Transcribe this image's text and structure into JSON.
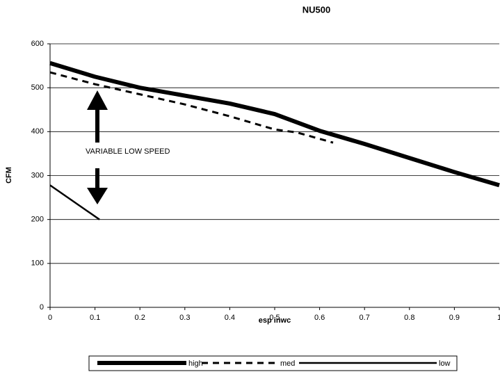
{
  "chart_data": {
    "type": "line",
    "title": "NU500",
    "xlabel": "esp inwc",
    "ylabel": "CFM",
    "annotation": "VARIABLE LOW SPEED",
    "xlim": [
      0,
      1
    ],
    "xticks": [
      0,
      0.1,
      0.2,
      0.3,
      0.4,
      0.5,
      0.6,
      0.7,
      0.8,
      0.9,
      1
    ],
    "ylim": [
      0,
      600
    ],
    "yticks": [
      0,
      100,
      200,
      300,
      400,
      500,
      600
    ],
    "grid": true,
    "series": [
      {
        "name": "high",
        "color": "#000000",
        "line_width": 6,
        "dash": "none",
        "x": [
          0,
          0.1,
          0.2,
          0.3,
          0.4,
          0.5,
          0.6,
          0.7,
          0.8,
          0.9,
          1
        ],
        "values": [
          556,
          525,
          500,
          482,
          464,
          440,
          402,
          372,
          340,
          308,
          278
        ]
      },
      {
        "name": "med",
        "color": "#000000",
        "line_width": 3,
        "dash": "9,7",
        "x": [
          0,
          0.1,
          0.2,
          0.3,
          0.4,
          0.5,
          0.55,
          0.63
        ],
        "values": [
          535,
          508,
          485,
          462,
          435,
          405,
          398,
          375
        ]
      },
      {
        "name": "low",
        "color": "#000000",
        "line_width": 2.5,
        "dash": "none",
        "x": [
          0,
          0.11
        ],
        "values": [
          278,
          200
        ]
      }
    ]
  }
}
